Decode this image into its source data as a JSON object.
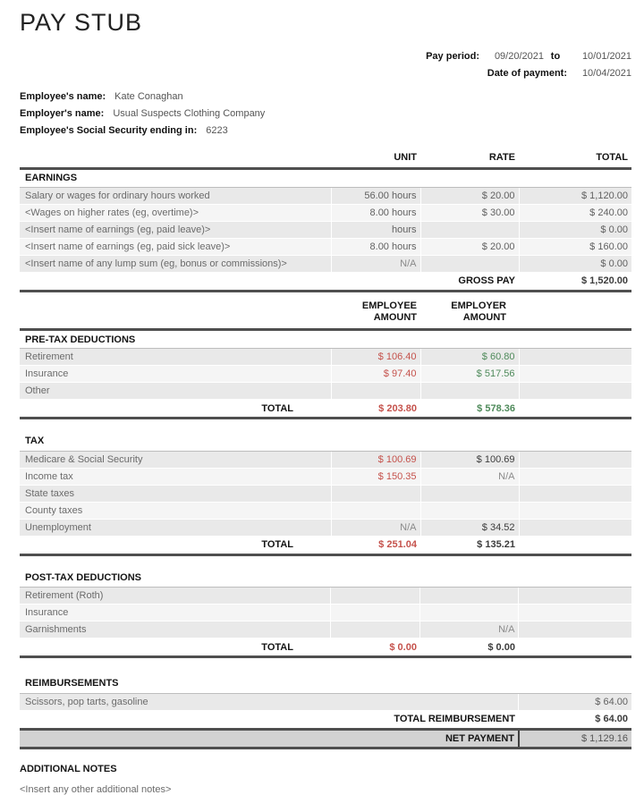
{
  "title": "PAY STUB",
  "meta": {
    "pay_period_label": "Pay period:",
    "period_start": "09/20/2021",
    "to_label": "to",
    "period_end": "10/01/2021",
    "payment_date_label": "Date of payment:",
    "payment_date": "10/04/2021"
  },
  "employee_info": {
    "name_label": "Employee's name:",
    "name": "Kate Conaghan",
    "employer_label": "Employer's name:",
    "employer": "Usual Suspects Clothing Company",
    "ssn_label": "Employee's Social Security ending in:",
    "ssn": "6223"
  },
  "earnings": {
    "col_headers": {
      "unit": "UNIT",
      "rate": "RATE",
      "total": "TOTAL"
    },
    "section_label": "EARNINGS",
    "rows": [
      {
        "label": "Salary or wages for ordinary hours worked",
        "unit": "56.00 hours",
        "rate": "$ 20.00",
        "total": "$ 1,120.00"
      },
      {
        "label": "<Wages on higher rates (eg, overtime)>",
        "unit": "8.00 hours",
        "rate": "$ 30.00",
        "total": "$ 240.00"
      },
      {
        "label": "<Insert name of earnings (eg, paid leave)>",
        "unit": "hours",
        "rate": "",
        "total": "$ 0.00"
      },
      {
        "label": "<Insert name of earnings (eg, paid sick leave)>",
        "unit": "8.00 hours",
        "rate": "$ 20.00",
        "total": "$ 160.00"
      },
      {
        "label": "<Insert name of any lump sum (eg, bonus or commissions)>",
        "unit": "N/A",
        "rate": "",
        "total": "$ 0.00"
      }
    ],
    "gross_pay": {
      "label": "GROSS PAY",
      "value": "$ 1,520.00"
    }
  },
  "amount_headers": {
    "employee_line1": "EMPLOYEE",
    "employee_line2": "AMOUNT",
    "employer_line1": "EMPLOYER",
    "employer_line2": "AMOUNT"
  },
  "pretax": {
    "section_label": "PRE-TAX DEDUCTIONS",
    "rows": [
      {
        "label": "Retirement",
        "employee": "$ 106.40",
        "employer": "$ 60.80"
      },
      {
        "label": "Insurance",
        "employee": "$ 97.40",
        "employer": "$ 517.56"
      },
      {
        "label": "Other",
        "employee": "",
        "employer": ""
      }
    ],
    "total_label": "TOTAL",
    "total_employee": "$ 203.80",
    "total_employer": "$ 578.36"
  },
  "tax": {
    "section_label": "TAX",
    "rows": [
      {
        "label": "Medicare & Social Security",
        "employee": "$ 100.69",
        "employer": "$ 100.69"
      },
      {
        "label": "Income tax",
        "employee": "$ 150.35",
        "employer": "N/A"
      },
      {
        "label": "State taxes",
        "employee": "",
        "employer": ""
      },
      {
        "label": "County taxes",
        "employee": "",
        "employer": ""
      },
      {
        "label": "Unemployment",
        "employee": "N/A",
        "employer": "$ 34.52"
      }
    ],
    "total_label": "TOTAL",
    "total_employee": "$ 251.04",
    "total_employer": "$ 135.21"
  },
  "posttax": {
    "section_label": "POST-TAX DEDUCTIONS",
    "rows": [
      {
        "label": "Retirement (Roth)",
        "employee": "",
        "employer": ""
      },
      {
        "label": "Insurance",
        "employee": "",
        "employer": ""
      },
      {
        "label": "Garnishments",
        "employee": "",
        "employer": "N/A"
      }
    ],
    "total_label": "TOTAL",
    "total_employee": "$ 0.00",
    "total_employer": "$ 0.00"
  },
  "reimbursements": {
    "section_label": "REIMBURSEMENTS",
    "rows": [
      {
        "label": "Scissors, pop tarts, gasoline",
        "total": "$ 64.00"
      }
    ],
    "total_label": "TOTAL REIMBURSEMENT",
    "total_value": "$ 64.00",
    "net_payment_label": "NET PAYMENT",
    "net_payment_value": "$ 1,129.16"
  },
  "notes": {
    "section_label": "ADDITIONAL NOTES",
    "placeholder": "<Insert any other additional notes>"
  },
  "colors": {
    "negative_amount": "#c5524c",
    "positive_amount": "#4e8a5a"
  }
}
